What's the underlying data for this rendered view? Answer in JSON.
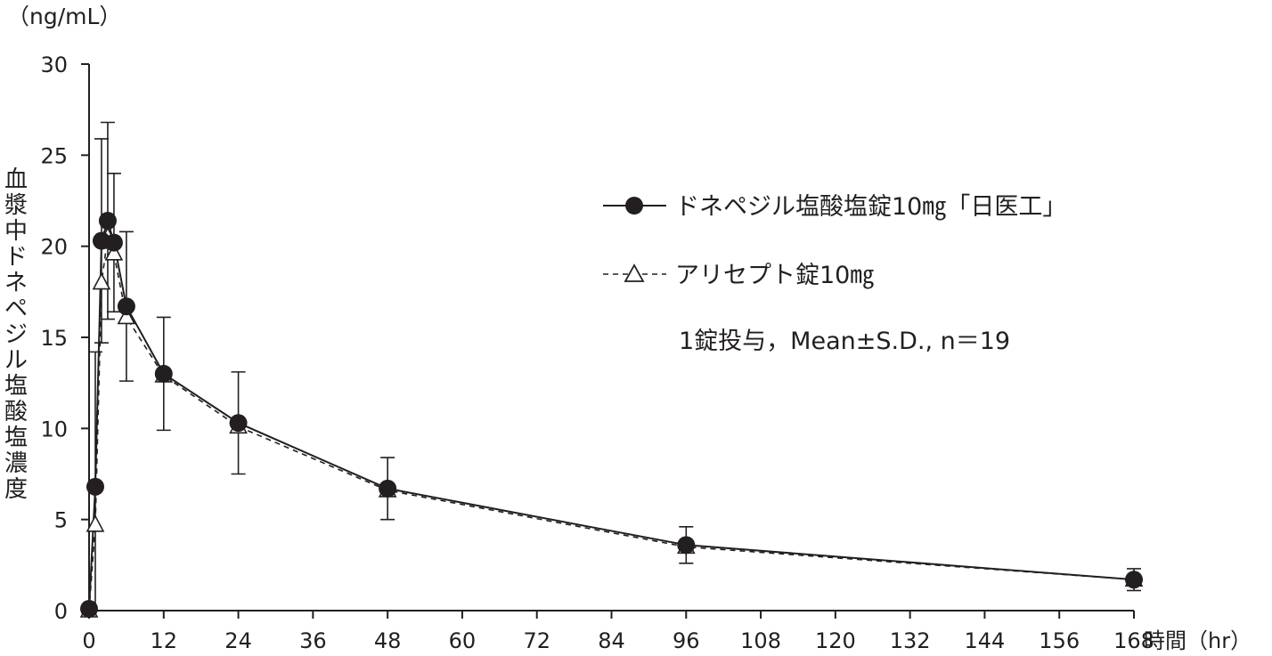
{
  "chart_data": {
    "type": "line",
    "title": "",
    "y_unit": "（ng/mL）",
    "ylabel": "血漿中ドネペジル塩酸塩濃度",
    "xlabel": "時間（hr）",
    "xlim": [
      0,
      168
    ],
    "ylim": [
      0,
      30
    ],
    "x_ticks": [
      0,
      12,
      24,
      36,
      48,
      60,
      72,
      84,
      96,
      108,
      120,
      132,
      144,
      156,
      168
    ],
    "x_tick_labels": [
      "0",
      "12",
      "24",
      "36",
      "48",
      "60",
      "72",
      "84",
      "96",
      "108",
      "120",
      "132",
      "144",
      "156",
      "168"
    ],
    "y_ticks": [
      0,
      5,
      10,
      15,
      20,
      25,
      30
    ],
    "y_tick_labels": [
      "0",
      "5",
      "10",
      "15",
      "20",
      "25",
      "30"
    ],
    "grid": false,
    "legend_position": "right",
    "annotation": "1錠投与，Mean±S.D., n＝19",
    "series": [
      {
        "name": "ドネペジル塩酸塩錠10㎎「日医工」",
        "marker": "filled-circle",
        "line_style": "solid",
        "color": "#231f20",
        "x": [
          0,
          1,
          2,
          3,
          4,
          6,
          12,
          24,
          48,
          96,
          168
        ],
        "y": [
          0.1,
          6.8,
          20.3,
          21.4,
          20.2,
          16.7,
          13.0,
          10.3,
          6.7,
          3.6,
          1.7
        ],
        "sd": [
          0,
          7.4,
          5.6,
          5.4,
          3.8,
          4.1,
          3.1,
          2.8,
          1.7,
          1.0,
          0.6
        ]
      },
      {
        "name": "アリセプト錠10㎎",
        "marker": "open-triangle",
        "line_style": "dashed",
        "color": "#231f20",
        "x": [
          0,
          1,
          2,
          3,
          4,
          6,
          12,
          24,
          48,
          96,
          168
        ],
        "y": [
          0.0,
          4.7,
          18.0,
          20.5,
          19.6,
          16.1,
          12.9,
          10.1,
          6.6,
          3.5,
          1.7
        ],
        "sd": [
          0,
          0,
          0,
          0,
          0,
          0,
          0,
          0,
          0,
          0,
          0
        ]
      }
    ]
  }
}
